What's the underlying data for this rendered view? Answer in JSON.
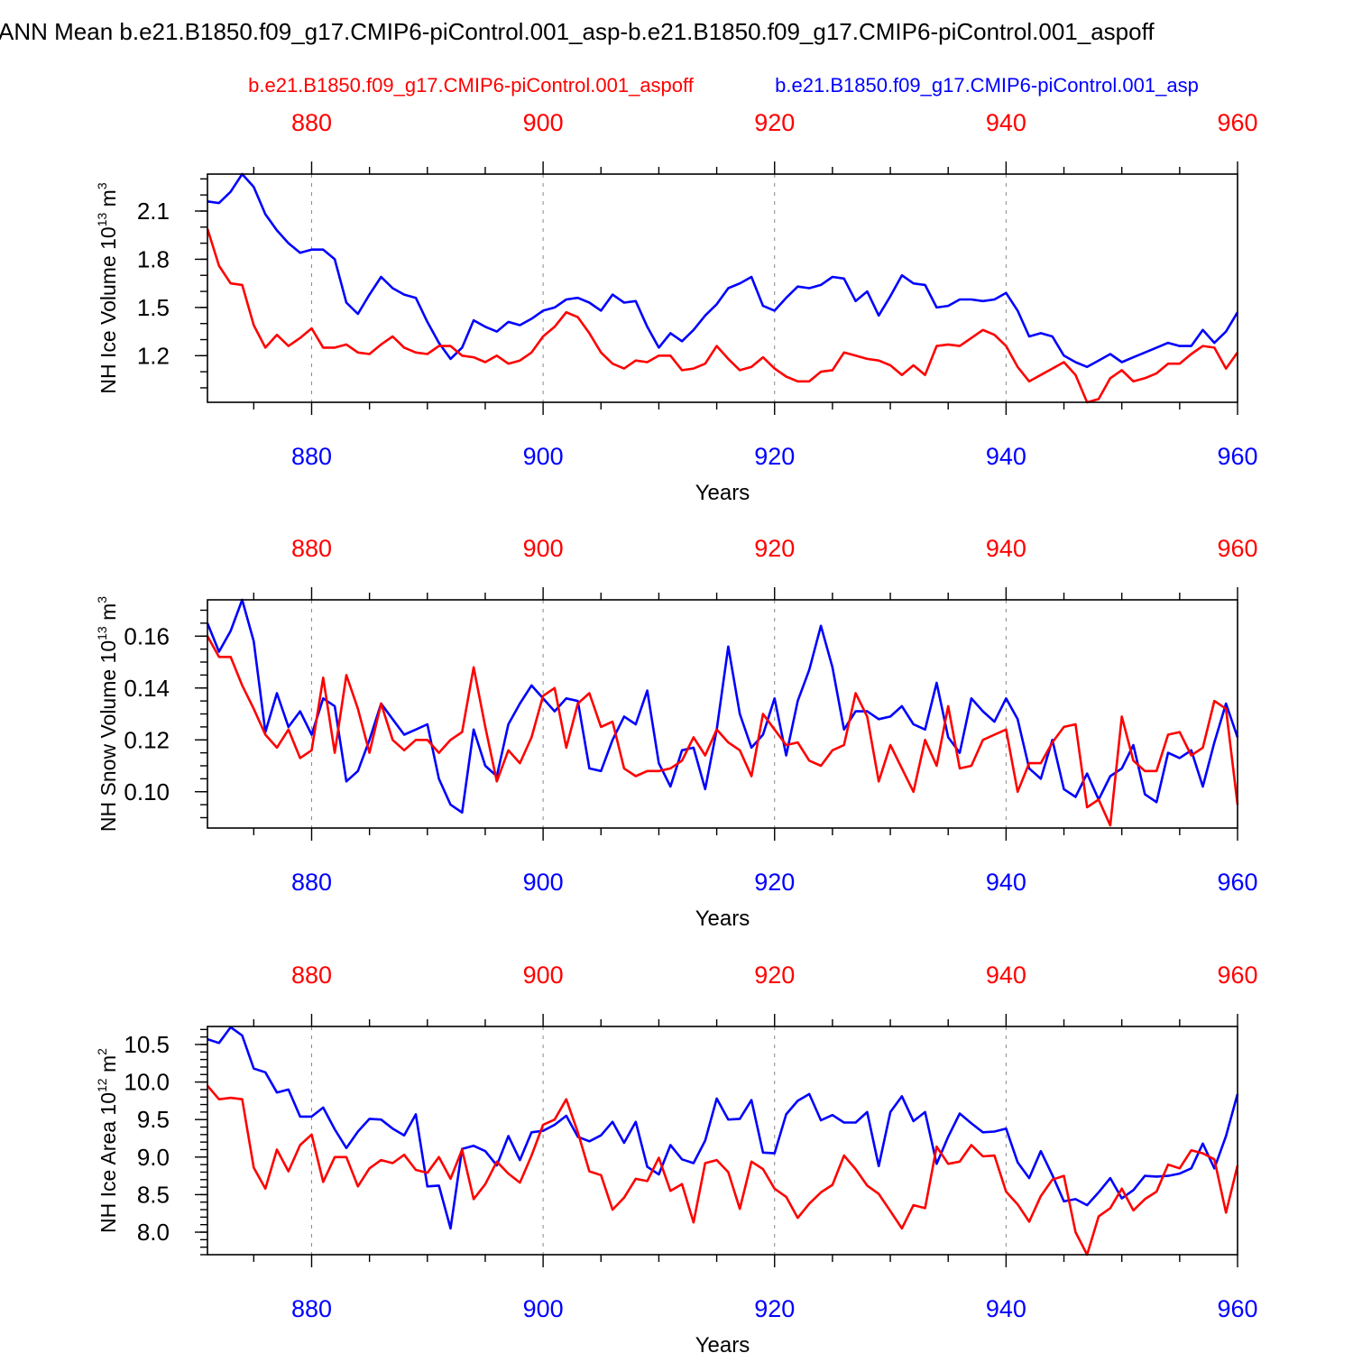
{
  "title": "ANN Mean b.e21.B1850.f09_g17.CMIP6-piControl.001_asp-b.e21.B1850.f09_g17.CMIP6-piControl.001_aspoff",
  "legend": {
    "red_label": "b.e21.B1850.f09_g17.CMIP6-piControl.001_aspoff",
    "blue_label": "b.e21.B1850.f09_g17.CMIP6-piControl.001_asp"
  },
  "colors": {
    "red": "#ff0000",
    "blue": "#0000ff",
    "axis": "#000000",
    "grid": "#888888"
  },
  "chart_data": [
    {
      "type": "line",
      "ylabel": "NH Ice Volume 10",
      "ylabel_exp": "13",
      "ylabel_unit": " m",
      "ylabel_unit_exp": "3",
      "xlabel": "Years",
      "xlim": [
        871,
        960
      ],
      "ylim": [
        0.91,
        2.33
      ],
      "yticks": [
        1.2,
        1.5,
        1.8,
        2.1
      ],
      "yticklabels": [
        "1.2",
        "1.5",
        "1.8",
        "2.1"
      ],
      "yminor": 0.1,
      "xticks": [
        880,
        900,
        920,
        940,
        960
      ],
      "xticklabels": [
        "880",
        "900",
        "920",
        "940",
        "960"
      ],
      "x_start": 871,
      "series": [
        {
          "name": "b.e21.B1850.f09_g17.CMIP6-piControl.001_asp",
          "color": "blue",
          "values": [
            2.16,
            2.15,
            2.22,
            2.33,
            2.25,
            2.08,
            1.98,
            1.9,
            1.84,
            1.86,
            1.86,
            1.8,
            1.53,
            1.46,
            1.58,
            1.69,
            1.62,
            1.58,
            1.56,
            1.41,
            1.28,
            1.18,
            1.25,
            1.42,
            1.38,
            1.35,
            1.41,
            1.39,
            1.43,
            1.48,
            1.5,
            1.55,
            1.56,
            1.53,
            1.48,
            1.58,
            1.53,
            1.54,
            1.38,
            1.25,
            1.34,
            1.29,
            1.36,
            1.45,
            1.52,
            1.62,
            1.65,
            1.69,
            1.51,
            1.48,
            1.56,
            1.63,
            1.62,
            1.64,
            1.69,
            1.68,
            1.54,
            1.6,
            1.45,
            1.57,
            1.7,
            1.65,
            1.64,
            1.5,
            1.51,
            1.55,
            1.55,
            1.54,
            1.55,
            1.59,
            1.48,
            1.32,
            1.34,
            1.32,
            1.2,
            1.16,
            1.13,
            1.17,
            1.21,
            1.16,
            1.19,
            1.22,
            1.25,
            1.28,
            1.26,
            1.26,
            1.36,
            1.28,
            1.35,
            1.47
          ]
        },
        {
          "name": "b.e21.B1850.f09_g17.CMIP6-piControl.001_aspoff",
          "color": "red",
          "values": [
            1.99,
            1.76,
            1.65,
            1.64,
            1.39,
            1.25,
            1.33,
            1.26,
            1.31,
            1.37,
            1.25,
            1.25,
            1.27,
            1.22,
            1.21,
            1.27,
            1.32,
            1.25,
            1.22,
            1.21,
            1.26,
            1.26,
            1.2,
            1.19,
            1.16,
            1.2,
            1.15,
            1.17,
            1.22,
            1.32,
            1.38,
            1.47,
            1.44,
            1.34,
            1.22,
            1.15,
            1.12,
            1.17,
            1.16,
            1.2,
            1.2,
            1.11,
            1.12,
            1.15,
            1.26,
            1.18,
            1.11,
            1.13,
            1.19,
            1.12,
            1.07,
            1.04,
            1.04,
            1.1,
            1.11,
            1.22,
            1.2,
            1.18,
            1.17,
            1.14,
            1.08,
            1.14,
            1.08,
            1.26,
            1.27,
            1.26,
            1.31,
            1.36,
            1.33,
            1.26,
            1.13,
            1.04,
            1.08,
            1.12,
            1.16,
            1.08,
            0.91,
            0.93,
            1.06,
            1.11,
            1.04,
            1.06,
            1.09,
            1.15,
            1.15,
            1.21,
            1.26,
            1.25,
            1.12,
            1.22
          ]
        }
      ]
    },
    {
      "type": "line",
      "ylabel": "NH Snow Volume 10",
      "ylabel_exp": "13",
      "ylabel_unit": " m",
      "ylabel_unit_exp": "3",
      "xlabel": "Years",
      "xlim": [
        871,
        960
      ],
      "ylim": [
        0.086,
        0.174
      ],
      "yticks": [
        0.1,
        0.12,
        0.14,
        0.16
      ],
      "yticklabels": [
        "0.10",
        "0.12",
        "0.14",
        "0.16"
      ],
      "yminor": 0.005,
      "xticks": [
        880,
        900,
        920,
        940,
        960
      ],
      "xticklabels": [
        "880",
        "900",
        "920",
        "940",
        "960"
      ],
      "x_start": 871,
      "series": [
        {
          "name": "b.e21.B1850.f09_g17.CMIP6-piControl.001_asp",
          "color": "blue",
          "values": [
            0.165,
            0.154,
            0.162,
            0.174,
            0.158,
            0.123,
            0.138,
            0.125,
            0.131,
            0.122,
            0.136,
            0.133,
            0.104,
            0.108,
            0.12,
            0.134,
            0.128,
            0.122,
            0.124,
            0.126,
            0.105,
            0.095,
            0.092,
            0.124,
            0.11,
            0.106,
            0.126,
            0.134,
            0.141,
            0.136,
            0.131,
            0.136,
            0.135,
            0.109,
            0.108,
            0.12,
            0.129,
            0.126,
            0.139,
            0.111,
            0.102,
            0.116,
            0.117,
            0.101,
            0.124,
            0.156,
            0.13,
            0.117,
            0.122,
            0.136,
            0.114,
            0.135,
            0.147,
            0.164,
            0.148,
            0.124,
            0.131,
            0.131,
            0.128,
            0.129,
            0.133,
            0.126,
            0.124,
            0.142,
            0.121,
            0.115,
            0.136,
            0.131,
            0.127,
            0.136,
            0.128,
            0.109,
            0.105,
            0.12,
            0.101,
            0.098,
            0.107,
            0.097,
            0.106,
            0.109,
            0.118,
            0.099,
            0.096,
            0.115,
            0.113,
            0.116,
            0.102,
            0.119,
            0.134,
            0.121
          ]
        },
        {
          "name": "b.e21.B1850.f09_g17.CMIP6-piControl.001_aspoff",
          "color": "red",
          "values": [
            0.16,
            0.152,
            0.152,
            0.141,
            0.132,
            0.122,
            0.117,
            0.124,
            0.113,
            0.116,
            0.144,
            0.115,
            0.145,
            0.132,
            0.115,
            0.134,
            0.12,
            0.116,
            0.12,
            0.12,
            0.115,
            0.12,
            0.123,
            0.148,
            0.125,
            0.104,
            0.116,
            0.111,
            0.121,
            0.137,
            0.14,
            0.117,
            0.134,
            0.138,
            0.125,
            0.127,
            0.109,
            0.106,
            0.108,
            0.108,
            0.109,
            0.112,
            0.121,
            0.114,
            0.124,
            0.119,
            0.116,
            0.106,
            0.13,
            0.124,
            0.118,
            0.119,
            0.112,
            0.11,
            0.116,
            0.118,
            0.138,
            0.129,
            0.104,
            0.118,
            0.109,
            0.1,
            0.12,
            0.11,
            0.133,
            0.109,
            0.11,
            0.12,
            0.122,
            0.124,
            0.1,
            0.111,
            0.111,
            0.119,
            0.125,
            0.126,
            0.094,
            0.097,
            0.087,
            0.129,
            0.112,
            0.108,
            0.108,
            0.122,
            0.123,
            0.114,
            0.117,
            0.135,
            0.132,
            0.095
          ]
        }
      ]
    },
    {
      "type": "line",
      "ylabel": "NH Ice Area 10",
      "ylabel_exp": "12",
      "ylabel_unit": " m",
      "ylabel_unit_exp": "2",
      "xlabel": "Years",
      "xlim": [
        871,
        960
      ],
      "ylim": [
        7.7,
        10.74
      ],
      "yticks": [
        8.0,
        8.5,
        9.0,
        9.5,
        10.0,
        10.5
      ],
      "yticklabels": [
        "8.0",
        "8.5",
        "9.0",
        "9.5",
        "10.0",
        "10.5"
      ],
      "yminor": 0.1,
      "xticks": [
        880,
        900,
        920,
        940,
        960
      ],
      "xticklabels": [
        "880",
        "900",
        "920",
        "940",
        "960"
      ],
      "x_start": 871,
      "series": [
        {
          "name": "b.e21.B1850.f09_g17.CMIP6-piControl.001_asp",
          "color": "blue",
          "values": [
            10.57,
            10.52,
            10.73,
            10.62,
            10.18,
            10.13,
            9.86,
            9.9,
            9.54,
            9.54,
            9.66,
            9.37,
            9.12,
            9.34,
            9.51,
            9.5,
            9.38,
            9.29,
            9.57,
            8.61,
            8.62,
            8.05,
            9.11,
            9.15,
            9.08,
            8.89,
            9.28,
            8.96,
            9.33,
            9.35,
            9.43,
            9.55,
            9.27,
            9.21,
            9.29,
            9.47,
            9.19,
            9.47,
            8.87,
            8.77,
            9.16,
            8.97,
            8.92,
            9.22,
            9.78,
            9.5,
            9.51,
            9.76,
            9.06,
            9.05,
            9.57,
            9.75,
            9.84,
            9.49,
            9.56,
            9.46,
            9.46,
            9.6,
            8.88,
            9.6,
            9.81,
            9.48,
            9.6,
            8.91,
            9.27,
            9.58,
            9.45,
            9.33,
            9.34,
            9.38,
            8.93,
            8.72,
            9.08,
            8.76,
            8.41,
            8.44,
            8.36,
            8.53,
            8.72,
            8.45,
            8.56,
            8.75,
            8.74,
            8.75,
            8.78,
            8.85,
            9.18,
            8.85,
            9.28,
            9.84
          ]
        },
        {
          "name": "b.e21.B1850.f09_g17.CMIP6-piControl.001_aspoff",
          "color": "red",
          "values": [
            9.95,
            9.77,
            9.79,
            9.77,
            8.86,
            8.58,
            9.1,
            8.81,
            9.16,
            9.3,
            8.67,
            9.0,
            9.0,
            8.61,
            8.85,
            8.96,
            8.92,
            9.03,
            8.83,
            8.79,
            9.0,
            8.71,
            9.1,
            8.44,
            8.64,
            8.94,
            8.78,
            8.66,
            9.02,
            9.43,
            9.5,
            9.77,
            9.33,
            8.81,
            8.76,
            8.3,
            8.46,
            8.71,
            8.68,
            8.99,
            8.55,
            8.64,
            8.13,
            8.92,
            8.96,
            8.8,
            8.31,
            8.94,
            8.84,
            8.58,
            8.47,
            8.19,
            8.38,
            8.53,
            8.63,
            9.02,
            8.84,
            8.62,
            8.51,
            8.28,
            8.05,
            8.36,
            8.32,
            9.14,
            8.91,
            8.94,
            9.16,
            9.01,
            9.02,
            8.54,
            8.37,
            8.14,
            8.48,
            8.7,
            8.75,
            8.0,
            7.7,
            8.21,
            8.32,
            8.58,
            8.29,
            8.44,
            8.54,
            8.9,
            8.85,
            9.09,
            9.05,
            8.97,
            8.26,
            8.89
          ]
        }
      ]
    }
  ]
}
